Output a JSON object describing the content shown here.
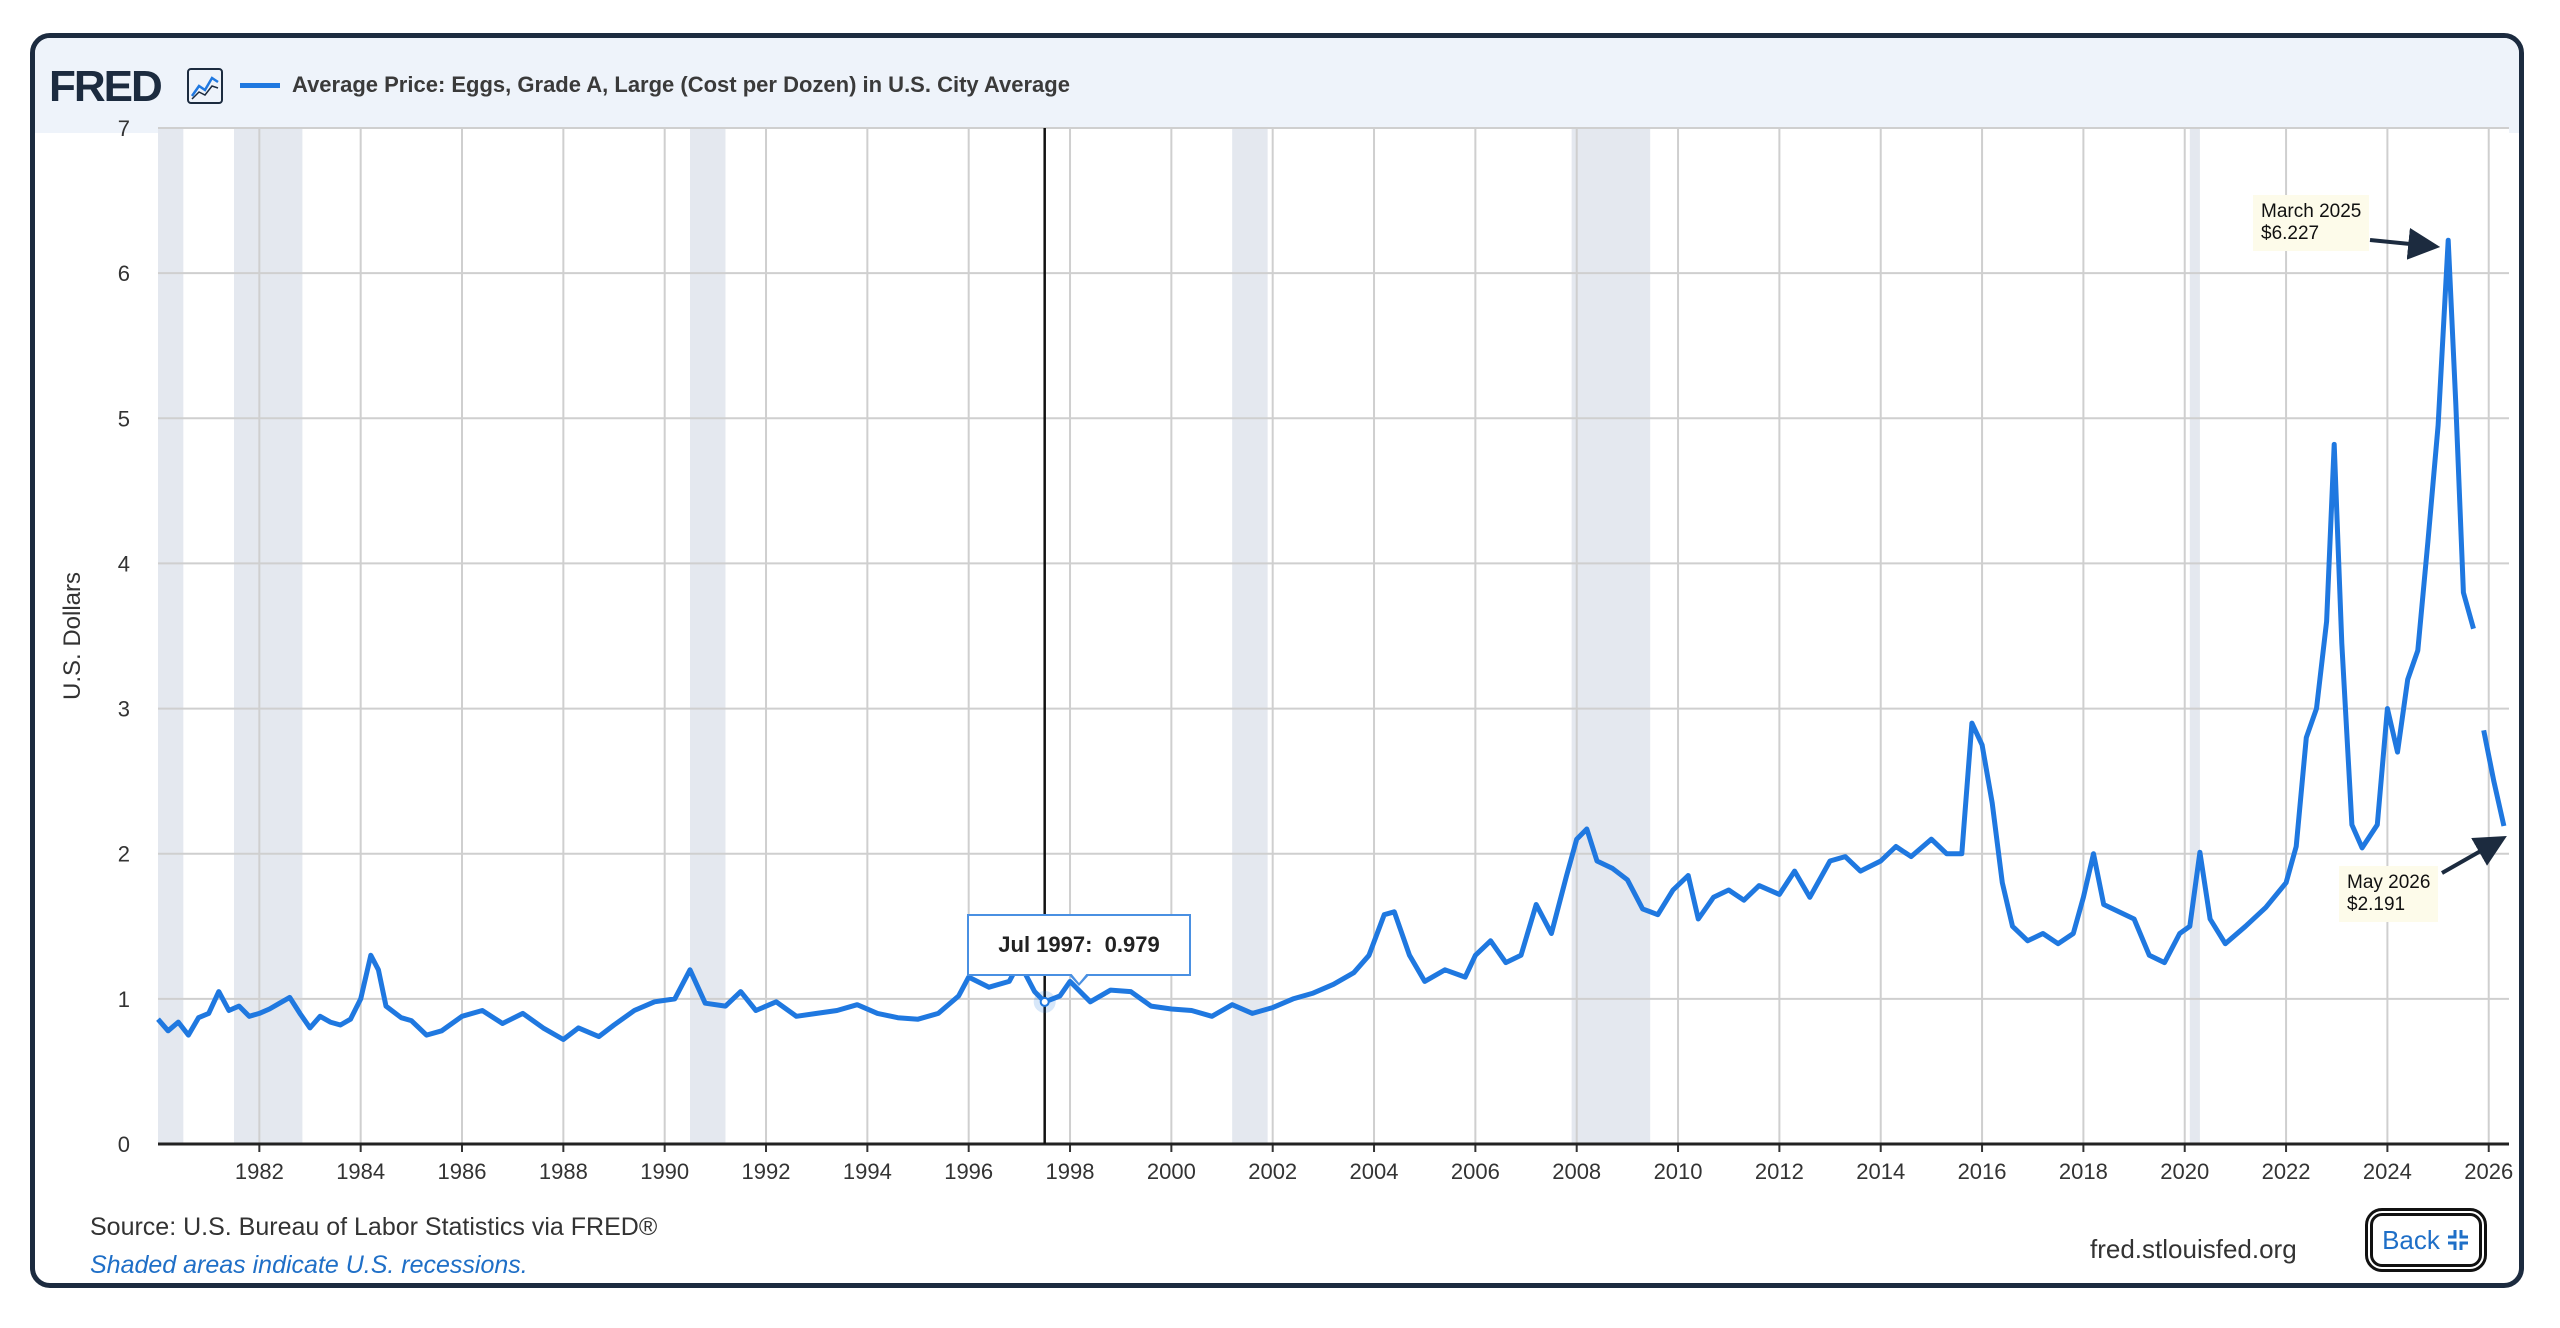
{
  "header": {
    "logo": "FRED",
    "logo_icon": "line-chart-icon",
    "series_title": "Average Price: Eggs, Grade A, Large (Cost per Dozen) in U.S. City Average"
  },
  "footer": {
    "source": "Source: U.S. Bureau of Labor Statistics via FRED®",
    "recession_note": "Shaded areas indicate U.S. recessions.",
    "site": "fred.stlouisfed.org",
    "back_label": "Back",
    "back_icon": "collapse-icon"
  },
  "tooltip": {
    "date": "Jul 1997:",
    "value": "0.979"
  },
  "annotations": {
    "peak": {
      "line1": "March 2025",
      "line2": "$6.227"
    },
    "latest": {
      "line1": "May 2026",
      "line2": "$2.191"
    }
  },
  "colors": {
    "series": "#1f78e0",
    "recession": "#e4e8ef",
    "frame": "#1c2b3f",
    "header_band": "#eef3fa"
  },
  "chart_data": {
    "type": "line",
    "ylabel": "U.S. Dollars",
    "xlabel": "",
    "ylim": [
      0,
      7
    ],
    "xlim": [
      1980.0,
      2026.4
    ],
    "yticks": [
      "0",
      "1",
      "2",
      "3",
      "4",
      "5",
      "6",
      "7"
    ],
    "xticks": [
      "1982",
      "1984",
      "1986",
      "1988",
      "1990",
      "1992",
      "1994",
      "1996",
      "1998",
      "2000",
      "2002",
      "2004",
      "2006",
      "2008",
      "2010",
      "2012",
      "2014",
      "2016",
      "2018",
      "2020",
      "2022",
      "2024",
      "2026"
    ],
    "grid": true,
    "recessions": [
      [
        1980.0,
        1980.5
      ],
      [
        1981.5,
        1982.85
      ],
      [
        1990.5,
        1991.2
      ],
      [
        2001.2,
        2001.9
      ],
      [
        2007.9,
        2009.45
      ],
      [
        2020.1,
        2020.3
      ]
    ],
    "series": [
      {
        "name": "Average Price: Eggs, Grade A, Large (Cost per Dozen) in U.S. City Average",
        "points": [
          [
            1980.0,
            0.86
          ],
          [
            1980.2,
            0.78
          ],
          [
            1980.4,
            0.84
          ],
          [
            1980.6,
            0.75
          ],
          [
            1980.8,
            0.87
          ],
          [
            1981.0,
            0.9
          ],
          [
            1981.2,
            1.05
          ],
          [
            1981.4,
            0.92
          ],
          [
            1981.6,
            0.95
          ],
          [
            1981.8,
            0.88
          ],
          [
            1982.0,
            0.9
          ],
          [
            1982.2,
            0.93
          ],
          [
            1982.4,
            0.97
          ],
          [
            1982.6,
            1.01
          ],
          [
            1982.8,
            0.9
          ],
          [
            1983.0,
            0.8
          ],
          [
            1983.2,
            0.88
          ],
          [
            1983.4,
            0.84
          ],
          [
            1983.6,
            0.82
          ],
          [
            1983.8,
            0.86
          ],
          [
            1984.0,
            1.0
          ],
          [
            1984.2,
            1.3
          ],
          [
            1984.35,
            1.2
          ],
          [
            1984.5,
            0.95
          ],
          [
            1984.8,
            0.87
          ],
          [
            1985.0,
            0.85
          ],
          [
            1985.3,
            0.75
          ],
          [
            1985.6,
            0.78
          ],
          [
            1986.0,
            0.88
          ],
          [
            1986.4,
            0.92
          ],
          [
            1986.8,
            0.83
          ],
          [
            1987.2,
            0.9
          ],
          [
            1987.6,
            0.8
          ],
          [
            1988.0,
            0.72
          ],
          [
            1988.3,
            0.8
          ],
          [
            1988.7,
            0.74
          ],
          [
            1989.0,
            0.82
          ],
          [
            1989.4,
            0.92
          ],
          [
            1989.8,
            0.98
          ],
          [
            1990.2,
            1.0
          ],
          [
            1990.5,
            1.2
          ],
          [
            1990.8,
            0.97
          ],
          [
            1991.2,
            0.95
          ],
          [
            1991.5,
            1.05
          ],
          [
            1991.8,
            0.92
          ],
          [
            1992.2,
            0.98
          ],
          [
            1992.6,
            0.88
          ],
          [
            1993.0,
            0.9
          ],
          [
            1993.4,
            0.92
          ],
          [
            1993.8,
            0.96
          ],
          [
            1994.2,
            0.9
          ],
          [
            1994.6,
            0.87
          ],
          [
            1995.0,
            0.86
          ],
          [
            1995.4,
            0.9
          ],
          [
            1995.8,
            1.02
          ],
          [
            1996.0,
            1.15
          ],
          [
            1996.4,
            1.08
          ],
          [
            1996.8,
            1.12
          ],
          [
            1997.0,
            1.25
          ],
          [
            1997.3,
            1.05
          ],
          [
            1997.5,
            0.979
          ],
          [
            1997.8,
            1.02
          ],
          [
            1998.0,
            1.12
          ],
          [
            1998.4,
            0.98
          ],
          [
            1998.8,
            1.06
          ],
          [
            1999.2,
            1.05
          ],
          [
            1999.6,
            0.95
          ],
          [
            2000.0,
            0.93
          ],
          [
            2000.4,
            0.92
          ],
          [
            2000.8,
            0.88
          ],
          [
            2001.2,
            0.96
          ],
          [
            2001.6,
            0.9
          ],
          [
            2002.0,
            0.94
          ],
          [
            2002.4,
            1.0
          ],
          [
            2002.8,
            1.04
          ],
          [
            2003.2,
            1.1
          ],
          [
            2003.6,
            1.18
          ],
          [
            2003.9,
            1.3
          ],
          [
            2004.2,
            1.58
          ],
          [
            2004.4,
            1.6
          ],
          [
            2004.7,
            1.3
          ],
          [
            2005.0,
            1.12
          ],
          [
            2005.4,
            1.2
          ],
          [
            2005.8,
            1.15
          ],
          [
            2006.0,
            1.3
          ],
          [
            2006.3,
            1.4
          ],
          [
            2006.6,
            1.25
          ],
          [
            2006.9,
            1.3
          ],
          [
            2007.2,
            1.65
          ],
          [
            2007.5,
            1.45
          ],
          [
            2007.8,
            1.85
          ],
          [
            2008.0,
            2.1
          ],
          [
            2008.2,
            2.17
          ],
          [
            2008.4,
            1.95
          ],
          [
            2008.7,
            1.9
          ],
          [
            2009.0,
            1.82
          ],
          [
            2009.3,
            1.62
          ],
          [
            2009.6,
            1.58
          ],
          [
            2009.9,
            1.75
          ],
          [
            2010.2,
            1.85
          ],
          [
            2010.4,
            1.55
          ],
          [
            2010.7,
            1.7
          ],
          [
            2011.0,
            1.75
          ],
          [
            2011.3,
            1.68
          ],
          [
            2011.6,
            1.78
          ],
          [
            2012.0,
            1.72
          ],
          [
            2012.3,
            1.88
          ],
          [
            2012.6,
            1.7
          ],
          [
            2013.0,
            1.95
          ],
          [
            2013.3,
            1.98
          ],
          [
            2013.6,
            1.88
          ],
          [
            2014.0,
            1.95
          ],
          [
            2014.3,
            2.05
          ],
          [
            2014.6,
            1.98
          ],
          [
            2015.0,
            2.1
          ],
          [
            2015.3,
            2.0
          ],
          [
            2015.6,
            2.0
          ],
          [
            2015.8,
            2.9
          ],
          [
            2016.0,
            2.75
          ],
          [
            2016.2,
            2.35
          ],
          [
            2016.4,
            1.8
          ],
          [
            2016.6,
            1.5
          ],
          [
            2016.9,
            1.4
          ],
          [
            2017.2,
            1.45
          ],
          [
            2017.5,
            1.38
          ],
          [
            2017.8,
            1.45
          ],
          [
            2018.0,
            1.7
          ],
          [
            2018.2,
            2.0
          ],
          [
            2018.4,
            1.65
          ],
          [
            2018.7,
            1.6
          ],
          [
            2019.0,
            1.55
          ],
          [
            2019.3,
            1.3
          ],
          [
            2019.6,
            1.25
          ],
          [
            2019.9,
            1.45
          ],
          [
            2020.1,
            1.5
          ],
          [
            2020.3,
            2.01
          ],
          [
            2020.5,
            1.55
          ],
          [
            2020.8,
            1.38
          ],
          [
            2021.2,
            1.5
          ],
          [
            2021.6,
            1.63
          ],
          [
            2022.0,
            1.8
          ],
          [
            2022.2,
            2.05
          ],
          [
            2022.4,
            2.8
          ],
          [
            2022.6,
            3.0
          ],
          [
            2022.8,
            3.6
          ],
          [
            2022.95,
            4.82
          ],
          [
            2023.1,
            3.45
          ],
          [
            2023.3,
            2.2
          ],
          [
            2023.5,
            2.04
          ],
          [
            2023.8,
            2.2
          ],
          [
            2024.0,
            3.0
          ],
          [
            2024.2,
            2.7
          ],
          [
            2024.4,
            3.2
          ],
          [
            2024.6,
            3.4
          ],
          [
            2024.8,
            4.15
          ],
          [
            2025.0,
            4.95
          ],
          [
            2025.2,
            6.227
          ],
          [
            2025.35,
            5.1
          ],
          [
            2025.5,
            3.8
          ],
          [
            2025.7,
            3.55
          ],
          [
            2025.9,
            2.85
          ],
          [
            2026.1,
            2.5
          ],
          [
            2026.3,
            2.191
          ]
        ]
      }
    ],
    "annotations": [
      {
        "label": "March 2025 $6.227",
        "x": 2025.2,
        "y": 6.227
      },
      {
        "label": "May 2026 $2.191",
        "x": 2026.3,
        "y": 2.191
      }
    ],
    "tooltip_point": {
      "x": 1997.5,
      "y": 0.979
    }
  }
}
